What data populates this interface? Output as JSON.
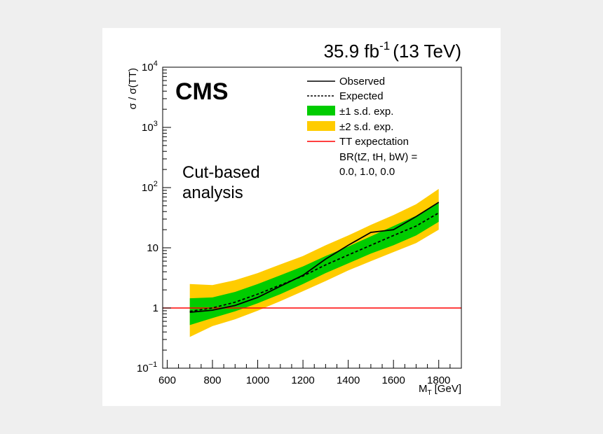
{
  "chart_data": {
    "type": "line",
    "lumi_label": "35.9 fb",
    "lumi_exponent": "-1",
    "energy_label": "(13 TeV)",
    "experiment": "CMS",
    "annotation_line1": "Cut-based",
    "annotation_line2": "analysis",
    "xlabel_main": "M",
    "xlabel_sub": "T",
    "xlabel_unit": "[GeV]",
    "ylabel": "σ / σ(TT)",
    "xlim": [
      580,
      1900
    ],
    "ylim": [
      0.1,
      10000
    ],
    "yscale": "log",
    "x_ticks": [
      {
        "value": 600,
        "label": "600"
      },
      {
        "value": 800,
        "label": "800"
      },
      {
        "value": 1000,
        "label": "1000"
      },
      {
        "value": 1200,
        "label": "1200"
      },
      {
        "value": 1400,
        "label": "1400"
      },
      {
        "value": 1600,
        "label": "1600"
      },
      {
        "value": 1800,
        "label": "1800"
      }
    ],
    "y_ticks": [
      {
        "value": 0.1,
        "base": "10",
        "exp": "−1"
      },
      {
        "value": 1,
        "base": "1",
        "exp": ""
      },
      {
        "value": 10,
        "base": "10",
        "exp": ""
      },
      {
        "value": 100,
        "base": "10",
        "exp": "2"
      },
      {
        "value": 1000,
        "base": "10",
        "exp": "3"
      },
      {
        "value": 10000,
        "base": "10",
        "exp": "4"
      }
    ],
    "x": [
      700,
      800,
      900,
      1000,
      1100,
      1200,
      1300,
      1400,
      1500,
      1600,
      1700,
      1800
    ],
    "series": [
      {
        "name": "Observed",
        "style": "solid",
        "color": "#000000",
        "values": [
          0.85,
          0.92,
          1.1,
          1.5,
          2.3,
          3.5,
          6.5,
          11,
          18,
          20,
          33,
          57
        ]
      },
      {
        "name": "Expected",
        "style": "dashed",
        "color": "#000000",
        "values": [
          0.88,
          1.0,
          1.25,
          1.7,
          2.4,
          3.4,
          5.2,
          7.6,
          11,
          16,
          23,
          38
        ]
      }
    ],
    "bands": [
      {
        "name": "±2 s.d. exp.",
        "color": "#ffcc00",
        "low": [
          0.33,
          0.5,
          0.65,
          0.9,
          1.3,
          1.9,
          2.8,
          4.2,
          6.0,
          8.5,
          12,
          20
        ],
        "high": [
          2.5,
          2.4,
          2.9,
          3.8,
          5.3,
          7.3,
          11,
          16,
          24,
          35,
          53,
          95
        ]
      },
      {
        "name": "±1 s.d. exp.",
        "color": "#00cc00",
        "low": [
          0.52,
          0.68,
          0.88,
          1.2,
          1.7,
          2.5,
          3.8,
          5.5,
          8.0,
          11,
          16,
          27
        ],
        "high": [
          1.45,
          1.5,
          1.85,
          2.5,
          3.5,
          4.9,
          7.3,
          10.5,
          15.5,
          23,
          34,
          58
        ]
      }
    ],
    "reference_line": {
      "name": "TT expectation",
      "value": 1,
      "color": "#ff0000"
    },
    "legend": {
      "position": "top-right",
      "entries": [
        {
          "label": "Observed",
          "kind": "line-solid",
          "color": "#000000"
        },
        {
          "label": "Expected",
          "kind": "line-dashed",
          "color": "#000000"
        },
        {
          "label": "±1 s.d. exp.",
          "kind": "box",
          "color": "#00cc00"
        },
        {
          "label": "±2 s.d. exp.",
          "kind": "box",
          "color": "#ffcc00"
        },
        {
          "label": "TT expectation",
          "kind": "line-solid",
          "color": "#ff0000"
        }
      ],
      "br_line1": "BR(tZ, tH, bW) =",
      "br_line2": "0.0, 1.0, 0.0"
    }
  }
}
